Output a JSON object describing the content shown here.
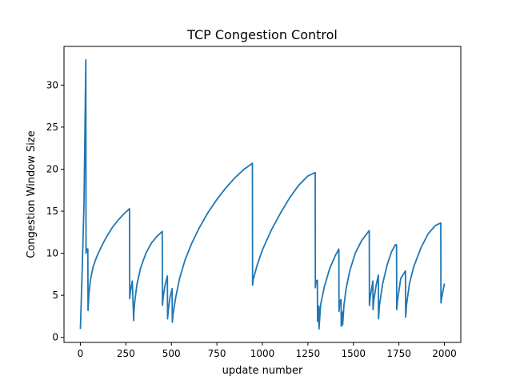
{
  "chart_data": {
    "type": "line",
    "title": "TCP Congestion Control",
    "xlabel": "update number",
    "ylabel": "Congestion Window Size",
    "xlim": [
      -90,
      2090
    ],
    "ylim": [
      -0.6,
      34.6
    ],
    "xticks": [
      0,
      250,
      500,
      750,
      1000,
      1250,
      1500,
      1750,
      2000
    ],
    "yticks": [
      0,
      5,
      10,
      15,
      20,
      25,
      30
    ],
    "grid": false,
    "legend": "none",
    "series": [
      {
        "color": "#1f77b4",
        "x": [
          0,
          10,
          20,
          30,
          31,
          35,
          41,
          42,
          47,
          55,
          70,
          90,
          120,
          150,
          180,
          210,
          240,
          270,
          271,
          275,
          285,
          293,
          294,
          298,
          310,
          330,
          360,
          390,
          420,
          450,
          451,
          455,
          465,
          478,
          479,
          483,
          492,
          504,
          505,
          510,
          525,
          545,
          575,
          610,
          650,
          700,
          750,
          800,
          850,
          900,
          945,
          946,
          950,
          970,
          1000,
          1050,
          1100,
          1150,
          1200,
          1250,
          1290,
          1291,
          1295,
          1302,
          1303,
          1307,
          1310,
          1311,
          1320,
          1340,
          1370,
          1400,
          1420,
          1421,
          1425,
          1432,
          1433,
          1437,
          1440,
          1441,
          1448,
          1460,
          1480,
          1510,
          1545,
          1580,
          1587,
          1588,
          1592,
          1607,
          1608,
          1612,
          1625,
          1637,
          1638,
          1643,
          1660,
          1685,
          1710,
          1730,
          1737,
          1738,
          1743,
          1760,
          1786,
          1787,
          1792,
          1808,
          1830,
          1870,
          1910,
          1950,
          1980,
          1981,
          1985,
          2000
        ],
        "y": [
          1,
          8,
          16,
          33,
          10,
          10.5,
          10.5,
          3.2,
          5.2,
          6.8,
          8.4,
          9.6,
          11.0,
          12.2,
          13.2,
          14.0,
          14.7,
          15.3,
          4.6,
          5.5,
          6.7,
          2.0,
          3.0,
          4.1,
          6.2,
          8.2,
          10.0,
          11.2,
          12.0,
          12.6,
          3.8,
          4.8,
          6.2,
          7.3,
          2.2,
          3.2,
          4.7,
          5.8,
          1.8,
          2.9,
          4.9,
          7.0,
          9.2,
          11.1,
          12.9,
          14.8,
          16.4,
          17.8,
          19.0,
          20.0,
          20.7,
          6.2,
          6.9,
          8.5,
          10.4,
          12.8,
          14.8,
          16.6,
          18.1,
          19.2,
          19.6,
          5.9,
          6.7,
          6.8,
          1.9,
          3.3,
          3.7,
          1.0,
          3.9,
          6.0,
          8.2,
          9.7,
          10.5,
          3.1,
          4.3,
          4.5,
          1.3,
          2.7,
          3.0,
          1.5,
          3.8,
          5.8,
          7.9,
          10.0,
          11.5,
          12.5,
          12.7,
          3.8,
          4.7,
          6.7,
          3.3,
          4.4,
          6.2,
          7.4,
          2.2,
          3.8,
          6.3,
          8.6,
          10.2,
          11.0,
          11.0,
          3.3,
          4.5,
          7.0,
          7.9,
          2.4,
          3.9,
          6.4,
          8.3,
          10.6,
          12.3,
          13.3,
          13.6,
          4.1,
          4.7,
          6.4
        ]
      }
    ]
  }
}
